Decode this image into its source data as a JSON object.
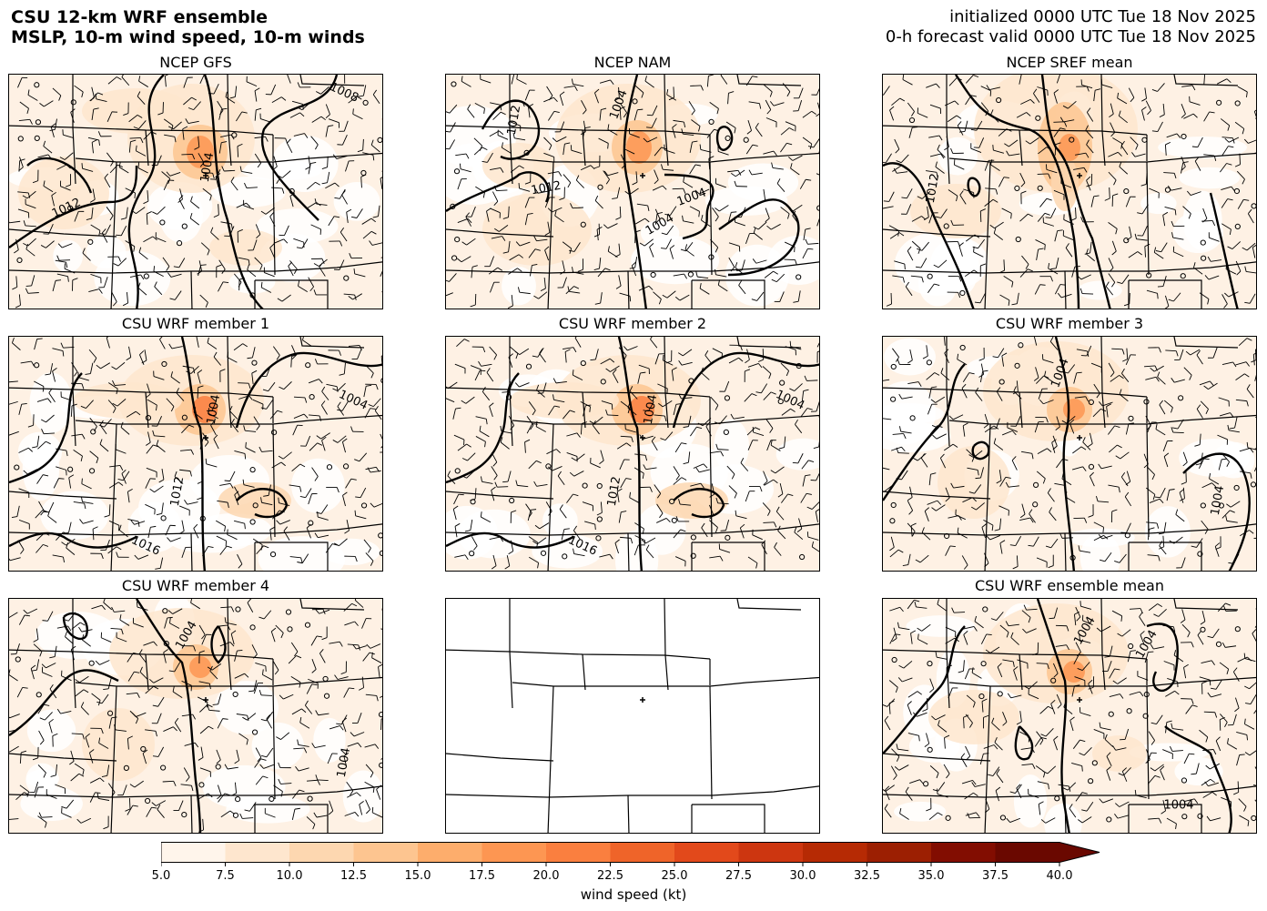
{
  "header": {
    "title_line1": "CSU 12-km WRF ensemble",
    "title_line2": "MSLP, 10-m wind speed, 10-m winds",
    "init_line": "initialized 0000 UTC Tue 18 Nov 2025",
    "valid_line": "0-h forecast valid 0000 UTC Tue 18 Nov 2025"
  },
  "panels": [
    {
      "title": "NCEP GFS",
      "contour_labels": [
        "1008",
        "1004",
        "1012"
      ],
      "has_data": true
    },
    {
      "title": "NCEP NAM",
      "contour_labels": [
        "1012",
        "1004",
        "1012",
        "1004",
        "1004"
      ],
      "has_data": true
    },
    {
      "title": "NCEP SREF mean",
      "contour_labels": [
        "1012"
      ],
      "has_data": true
    },
    {
      "title": "CSU WRF member 1",
      "contour_labels": [
        "1004",
        "1004",
        "1012",
        "1016"
      ],
      "has_data": true
    },
    {
      "title": "CSU WRF member 2",
      "contour_labels": [
        "1004",
        "1004",
        "1012",
        "1016"
      ],
      "has_data": true
    },
    {
      "title": "CSU WRF member 3",
      "contour_labels": [
        "1004",
        "1004"
      ],
      "has_data": true
    },
    {
      "title": "CSU WRF member 4",
      "contour_labels": [
        "1004",
        "1004"
      ],
      "has_data": true
    },
    {
      "title": "",
      "contour_labels": [],
      "has_data": false
    },
    {
      "title": "CSU WRF ensemble mean",
      "contour_labels": [
        "1004",
        "1004",
        "1004"
      ],
      "has_data": true
    }
  ],
  "colorbar": {
    "label": "wind speed (kt)",
    "ticks": [
      "5.0",
      "7.5",
      "10.0",
      "12.5",
      "15.0",
      "17.5",
      "20.0",
      "22.5",
      "25.0",
      "27.5",
      "30.0",
      "32.5",
      "35.0",
      "37.5",
      "40.0"
    ],
    "colors": [
      "#fff5eb",
      "#fee6ce",
      "#fdd7b0",
      "#fdc590",
      "#fdad6c",
      "#fd9652",
      "#fa7f3f",
      "#ef6429",
      "#e2491b",
      "#cd3610",
      "#b62a04",
      "#9c1f02",
      "#820d01",
      "#6a0800"
    ],
    "extend": "max"
  }
}
